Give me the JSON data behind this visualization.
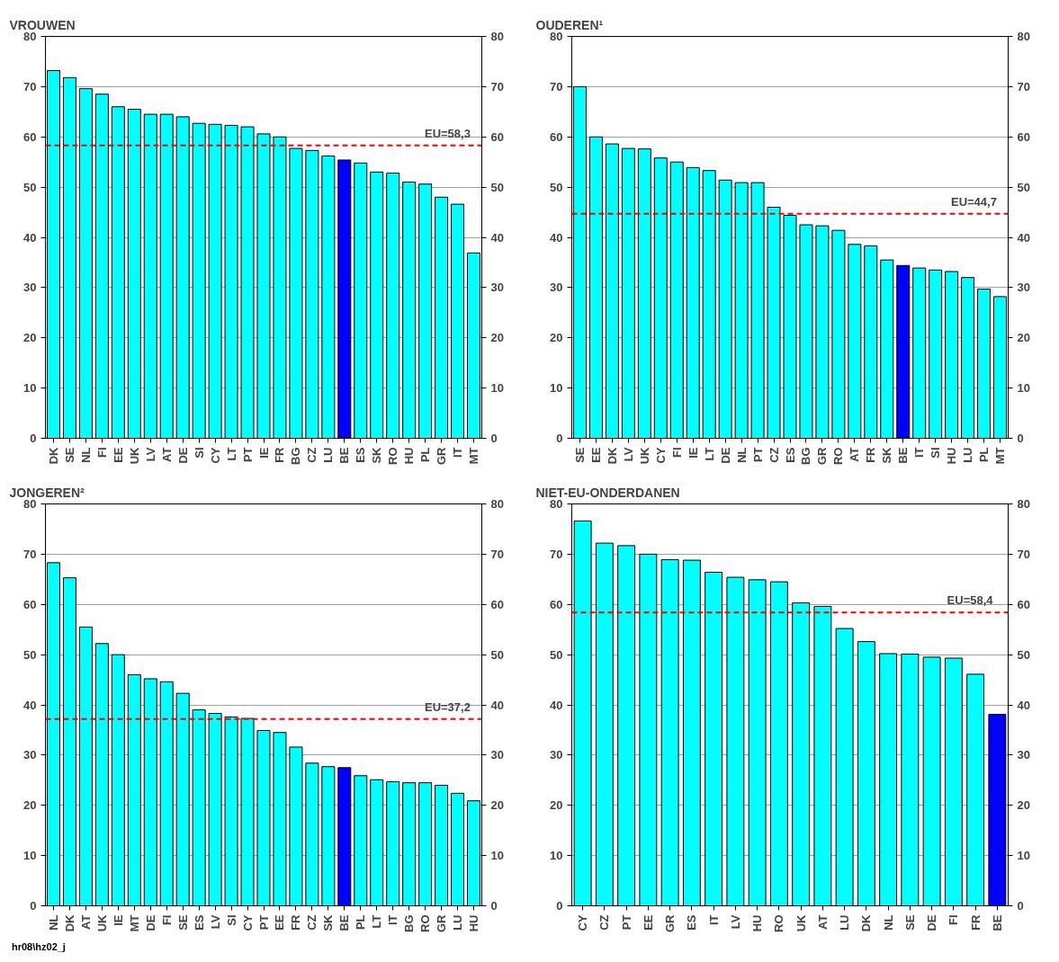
{
  "chart_data": [
    {
      "type": "bar",
      "title": "VROUWEN",
      "categories": [
        "DK",
        "SE",
        "NL",
        "FI",
        "EE",
        "UK",
        "LV",
        "AT",
        "DE",
        "SI",
        "CY",
        "LT",
        "PT",
        "IE",
        "FR",
        "BG",
        "CZ",
        "LU",
        "BE",
        "ES",
        "SK",
        "RO",
        "HU",
        "PL",
        "GR",
        "IT",
        "MT"
      ],
      "values": [
        73.2,
        71.8,
        69.6,
        68.5,
        66.0,
        65.5,
        64.5,
        64.5,
        64.0,
        62.7,
        62.5,
        62.3,
        62.0,
        60.6,
        60.0,
        57.7,
        57.3,
        56.2,
        55.4,
        54.8,
        53.0,
        52.8,
        51.0,
        50.6,
        48.0,
        46.6,
        36.9
      ],
      "colors": [
        "#00ffff",
        "#00ffff",
        "#00ffff",
        "#00ffff",
        "#00ffff",
        "#00ffff",
        "#00ffff",
        "#00ffff",
        "#00ffff",
        "#00ffff",
        "#00ffff",
        "#00ffff",
        "#00ffff",
        "#00ffff",
        "#00ffff",
        "#00ffff",
        "#00ffff",
        "#00ffff",
        "#0000ff",
        "#00ffff",
        "#00ffff",
        "#00ffff",
        "#00ffff",
        "#00ffff",
        "#00ffff",
        "#00ffff",
        "#00ffff"
      ],
      "ylim": [
        0,
        80
      ],
      "yticks": [
        0,
        10,
        20,
        30,
        40,
        50,
        60,
        70,
        80
      ],
      "y2lim": [
        0,
        80
      ],
      "y2ticks": [
        0,
        10,
        20,
        30,
        40,
        50,
        60,
        70,
        80
      ],
      "grid": "y",
      "ref_lines": [
        {
          "axis": "y",
          "value": 58.3,
          "label": "EU=58,3",
          "color": "#ff0000",
          "line_style": "dashed"
        }
      ]
    },
    {
      "type": "bar",
      "title": "OUDEREN¹",
      "categories": [
        "SE",
        "EE",
        "DK",
        "LV",
        "UK",
        "CY",
        "FI",
        "IE",
        "LT",
        "DE",
        "NL",
        "PT",
        "CZ",
        "ES",
        "BG",
        "GR",
        "RO",
        "AT",
        "FR",
        "SK",
        "BE",
        "IT",
        "SI",
        "HU",
        "LU",
        "PL",
        "MT"
      ],
      "values": [
        70.0,
        60.0,
        58.6,
        57.7,
        57.6,
        55.8,
        55.0,
        53.9,
        53.3,
        51.4,
        50.9,
        50.9,
        46.0,
        44.4,
        42.5,
        42.3,
        41.4,
        38.6,
        38.3,
        35.5,
        34.4,
        33.9,
        33.5,
        33.2,
        32.0,
        29.7,
        28.2
      ],
      "colors": [
        "#00ffff",
        "#00ffff",
        "#00ffff",
        "#00ffff",
        "#00ffff",
        "#00ffff",
        "#00ffff",
        "#00ffff",
        "#00ffff",
        "#00ffff",
        "#00ffff",
        "#00ffff",
        "#00ffff",
        "#00ffff",
        "#00ffff",
        "#00ffff",
        "#00ffff",
        "#00ffff",
        "#00ffff",
        "#00ffff",
        "#0000ff",
        "#00ffff",
        "#00ffff",
        "#00ffff",
        "#00ffff",
        "#00ffff",
        "#00ffff"
      ],
      "ylim": [
        0,
        80
      ],
      "yticks": [
        0,
        10,
        20,
        30,
        40,
        50,
        60,
        70,
        80
      ],
      "y2lim": [
        0,
        80
      ],
      "y2ticks": [
        0,
        10,
        20,
        30,
        40,
        50,
        60,
        70,
        80
      ],
      "grid": "y",
      "ref_lines": [
        {
          "axis": "y",
          "value": 44.7,
          "label": "EU=44,7",
          "color": "#ff0000",
          "line_style": "dashed"
        }
      ]
    },
    {
      "type": "bar",
      "title": "JONGEREN²",
      "categories": [
        "NL",
        "DK",
        "AT",
        "UK",
        "IE",
        "MT",
        "DE",
        "FI",
        "SE",
        "ES",
        "LV",
        "SI",
        "CY",
        "PT",
        "EE",
        "FR",
        "CZ",
        "SK",
        "BE",
        "PL",
        "LT",
        "IT",
        "BG",
        "RO",
        "GR",
        "LU",
        "HU"
      ],
      "values": [
        68.3,
        65.3,
        55.5,
        52.2,
        50.0,
        46.0,
        45.2,
        44.6,
        42.3,
        39.0,
        38.3,
        37.6,
        37.3,
        34.9,
        34.5,
        31.6,
        28.4,
        27.7,
        27.5,
        25.9,
        25.1,
        24.7,
        24.5,
        24.5,
        24.0,
        22.4,
        20.9
      ],
      "colors": [
        "#00ffff",
        "#00ffff",
        "#00ffff",
        "#00ffff",
        "#00ffff",
        "#00ffff",
        "#00ffff",
        "#00ffff",
        "#00ffff",
        "#00ffff",
        "#00ffff",
        "#00ffff",
        "#00ffff",
        "#00ffff",
        "#00ffff",
        "#00ffff",
        "#00ffff",
        "#00ffff",
        "#0000ff",
        "#00ffff",
        "#00ffff",
        "#00ffff",
        "#00ffff",
        "#00ffff",
        "#00ffff",
        "#00ffff",
        "#00ffff"
      ],
      "ylim": [
        0,
        80
      ],
      "yticks": [
        0,
        10,
        20,
        30,
        40,
        50,
        60,
        70,
        80
      ],
      "y2lim": [
        0,
        80
      ],
      "y2ticks": [
        0,
        10,
        20,
        30,
        40,
        50,
        60,
        70,
        80
      ],
      "grid": "y",
      "ref_lines": [
        {
          "axis": "y",
          "value": 37.2,
          "label": "EU=37,2",
          "color": "#ff0000",
          "line_style": "dashed"
        }
      ],
      "annotations": [
        "hr08\\hz02_j"
      ]
    },
    {
      "type": "bar",
      "title": "NIET-EU-ONDERDANEN",
      "categories": [
        "CY",
        "CZ",
        "PT",
        "EE",
        "GR",
        "ES",
        "IT",
        "LV",
        "HU",
        "RO",
        "UK",
        "AT",
        "LU",
        "DK",
        "NL",
        "SE",
        "DE",
        "FI",
        "FR",
        "BE"
      ],
      "values": [
        76.6,
        72.2,
        71.7,
        70.0,
        68.9,
        68.8,
        66.4,
        65.4,
        64.9,
        64.5,
        60.3,
        59.6,
        55.2,
        52.6,
        50.2,
        50.1,
        49.5,
        49.3,
        46.1,
        38.1
      ],
      "colors": [
        "#00ffff",
        "#00ffff",
        "#00ffff",
        "#00ffff",
        "#00ffff",
        "#00ffff",
        "#00ffff",
        "#00ffff",
        "#00ffff",
        "#00ffff",
        "#00ffff",
        "#00ffff",
        "#00ffff",
        "#00ffff",
        "#00ffff",
        "#00ffff",
        "#00ffff",
        "#00ffff",
        "#00ffff",
        "#0000ff"
      ],
      "ylim": [
        0,
        80
      ],
      "yticks": [
        0,
        10,
        20,
        30,
        40,
        50,
        60,
        70,
        80
      ],
      "y2lim": [
        0,
        80
      ],
      "y2ticks": [
        0,
        10,
        20,
        30,
        40,
        50,
        60,
        70,
        80
      ],
      "grid": "y",
      "ref_lines": [
        {
          "axis": "y",
          "value": 58.4,
          "label": "EU=58,4",
          "color": "#ff0000",
          "line_style": "dashed"
        }
      ]
    }
  ]
}
